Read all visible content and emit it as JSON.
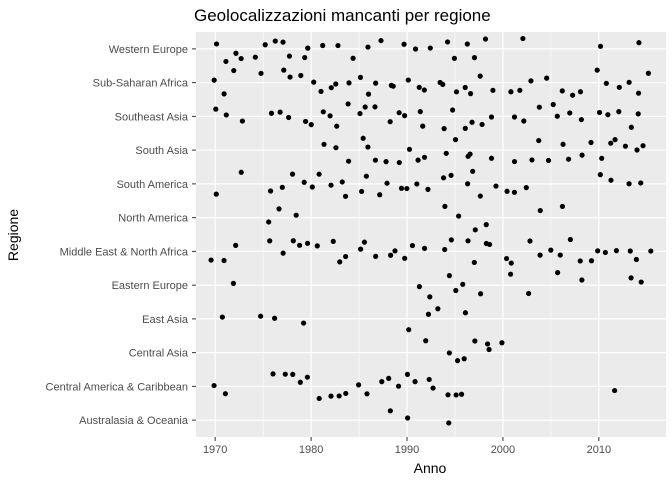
{
  "chart_data": {
    "type": "scatter",
    "title": "Geolocalizzazioni mancanti per regione",
    "xlabel": "Anno",
    "ylabel": "Regione",
    "xlim": [
      1968,
      2017
    ],
    "xticks": [
      1970,
      1980,
      1990,
      2000,
      2010
    ],
    "categories": [
      "Australasia & Oceania",
      "Central America & Caribbean",
      "Central Asia",
      "East Asia",
      "Eastern Europe",
      "Middle East & North Africa",
      "North America",
      "South America",
      "South Asia",
      "Southeast Asia",
      "Sub-Saharan Africa",
      "Western Europe"
    ],
    "grid": true,
    "legend": "none",
    "jitter": true,
    "point_color": "#000000",
    "panel_color": "#ebebeb",
    "grid_color": "#ffffff",
    "points": [
      [
        "Western Europe",
        1970
      ],
      [
        "Western Europe",
        1971
      ],
      [
        "Western Europe",
        1972
      ],
      [
        "Western Europe",
        1973
      ],
      [
        "Western Europe",
        1974
      ],
      [
        "Western Europe",
        1975
      ],
      [
        "Western Europe",
        1976
      ],
      [
        "Western Europe",
        1977
      ],
      [
        "Western Europe",
        1978
      ],
      [
        "Western Europe",
        1979
      ],
      [
        "Western Europe",
        1980
      ],
      [
        "Western Europe",
        1981
      ],
      [
        "Western Europe",
        1983
      ],
      [
        "Western Europe",
        1984
      ],
      [
        "Western Europe",
        1986
      ],
      [
        "Western Europe",
        1987
      ],
      [
        "Western Europe",
        1990
      ],
      [
        "Western Europe",
        1991
      ],
      [
        "Western Europe",
        1992
      ],
      [
        "Western Europe",
        1994
      ],
      [
        "Western Europe",
        1995
      ],
      [
        "Western Europe",
        1996
      ],
      [
        "Western Europe",
        1997
      ],
      [
        "Western Europe",
        1998
      ],
      [
        "Western Europe",
        2002
      ],
      [
        "Western Europe",
        2010
      ],
      [
        "Western Europe",
        2014
      ],
      [
        "Sub-Saharan Africa",
        1970
      ],
      [
        "Sub-Saharan Africa",
        1971
      ],
      [
        "Sub-Saharan Africa",
        1972
      ],
      [
        "Sub-Saharan Africa",
        1975
      ],
      [
        "Sub-Saharan Africa",
        1977
      ],
      [
        "Sub-Saharan Africa",
        1978
      ],
      [
        "Sub-Saharan Africa",
        1979
      ],
      [
        "Sub-Saharan Africa",
        1980
      ],
      [
        "Sub-Saharan Africa",
        1981
      ],
      [
        "Sub-Saharan Africa",
        1982
      ],
      [
        "Sub-Saharan Africa",
        1983
      ],
      [
        "Sub-Saharan Africa",
        1984
      ],
      [
        "Sub-Saharan Africa",
        1985
      ],
      [
        "Sub-Saharan Africa",
        1986
      ],
      [
        "Sub-Saharan Africa",
        1987
      ],
      [
        "Sub-Saharan Africa",
        1988
      ],
      [
        "Sub-Saharan Africa",
        1989
      ],
      [
        "Sub-Saharan Africa",
        1990
      ],
      [
        "Sub-Saharan Africa",
        1991
      ],
      [
        "Sub-Saharan Africa",
        1992
      ],
      [
        "Sub-Saharan Africa",
        1993
      ],
      [
        "Sub-Saharan Africa",
        1994
      ],
      [
        "Sub-Saharan Africa",
        1995
      ],
      [
        "Sub-Saharan Africa",
        1996
      ],
      [
        "Sub-Saharan Africa",
        1997
      ],
      [
        "Sub-Saharan Africa",
        1998
      ],
      [
        "Sub-Saharan Africa",
        1999
      ],
      [
        "Sub-Saharan Africa",
        2001
      ],
      [
        "Sub-Saharan Africa",
        2002
      ],
      [
        "Sub-Saharan Africa",
        2003
      ],
      [
        "Sub-Saharan Africa",
        2005
      ],
      [
        "Sub-Saharan Africa",
        2006
      ],
      [
        "Sub-Saharan Africa",
        2007
      ],
      [
        "Sub-Saharan Africa",
        2008
      ],
      [
        "Sub-Saharan Africa",
        2010
      ],
      [
        "Sub-Saharan Africa",
        2011
      ],
      [
        "Sub-Saharan Africa",
        2012
      ],
      [
        "Sub-Saharan Africa",
        2013
      ],
      [
        "Sub-Saharan Africa",
        2014
      ],
      [
        "Sub-Saharan Africa",
        2015
      ],
      [
        "Southeast Asia",
        1970
      ],
      [
        "Southeast Asia",
        1971
      ],
      [
        "Southeast Asia",
        1973
      ],
      [
        "Southeast Asia",
        1976
      ],
      [
        "Southeast Asia",
        1977
      ],
      [
        "Southeast Asia",
        1978
      ],
      [
        "Southeast Asia",
        1979
      ],
      [
        "Southeast Asia",
        1980
      ],
      [
        "Southeast Asia",
        1981
      ],
      [
        "Southeast Asia",
        1982
      ],
      [
        "Southeast Asia",
        1983
      ],
      [
        "Southeast Asia",
        1984
      ],
      [
        "Southeast Asia",
        1985
      ],
      [
        "Southeast Asia",
        1986
      ],
      [
        "Southeast Asia",
        1987
      ],
      [
        "Southeast Asia",
        1988
      ],
      [
        "Southeast Asia",
        1989
      ],
      [
        "Southeast Asia",
        1990
      ],
      [
        "Southeast Asia",
        1991
      ],
      [
        "Southeast Asia",
        1992
      ],
      [
        "Southeast Asia",
        1994
      ],
      [
        "Southeast Asia",
        1995
      ],
      [
        "Southeast Asia",
        1996
      ],
      [
        "Southeast Asia",
        1997
      ],
      [
        "Southeast Asia",
        1998
      ],
      [
        "Southeast Asia",
        1999
      ],
      [
        "Southeast Asia",
        2001
      ],
      [
        "Southeast Asia",
        2002
      ],
      [
        "Southeast Asia",
        2004
      ],
      [
        "Southeast Asia",
        2005
      ],
      [
        "Southeast Asia",
        2006
      ],
      [
        "Southeast Asia",
        2007
      ],
      [
        "Southeast Asia",
        2008
      ],
      [
        "Southeast Asia",
        2010
      ],
      [
        "Southeast Asia",
        2011
      ],
      [
        "Southeast Asia",
        2012
      ],
      [
        "Southeast Asia",
        2013
      ],
      [
        "Southeast Asia",
        2014
      ],
      [
        "South Asia",
        1981
      ],
      [
        "South Asia",
        1983
      ],
      [
        "South Asia",
        1984
      ],
      [
        "South Asia",
        1985
      ],
      [
        "South Asia",
        1986
      ],
      [
        "South Asia",
        1987
      ],
      [
        "South Asia",
        1988
      ],
      [
        "South Asia",
        1989
      ],
      [
        "South Asia",
        1990
      ],
      [
        "South Asia",
        1991
      ],
      [
        "South Asia",
        1992
      ],
      [
        "South Asia",
        1994
      ],
      [
        "South Asia",
        1995
      ],
      [
        "South Asia",
        1996
      ],
      [
        "South Asia",
        1997
      ],
      [
        "South Asia",
        1999
      ],
      [
        "South Asia",
        2001
      ],
      [
        "South Asia",
        2003
      ],
      [
        "South Asia",
        2004
      ],
      [
        "South Asia",
        2005
      ],
      [
        "South Asia",
        2006
      ],
      [
        "South Asia",
        2007
      ],
      [
        "South Asia",
        2008
      ],
      [
        "South Asia",
        2009
      ],
      [
        "South Asia",
        2010
      ],
      [
        "South Asia",
        2011
      ],
      [
        "South Asia",
        2012
      ],
      [
        "South Asia",
        2013
      ],
      [
        "South Asia",
        2014
      ],
      [
        "South Asia",
        2015
      ],
      [
        "South America",
        1970
      ],
      [
        "South America",
        1973
      ],
      [
        "South America",
        1976
      ],
      [
        "South America",
        1977
      ],
      [
        "South America",
        1978
      ],
      [
        "South America",
        1979
      ],
      [
        "South America",
        1980
      ],
      [
        "South America",
        1981
      ],
      [
        "South America",
        1982
      ],
      [
        "South America",
        1983
      ],
      [
        "South America",
        1984
      ],
      [
        "South America",
        1985
      ],
      [
        "South America",
        1986
      ],
      [
        "South America",
        1987
      ],
      [
        "South America",
        1988
      ],
      [
        "South America",
        1989
      ],
      [
        "South America",
        1990
      ],
      [
        "South America",
        1991
      ],
      [
        "South America",
        1992
      ],
      [
        "South America",
        1994
      ],
      [
        "South America",
        1995
      ],
      [
        "South America",
        1996
      ],
      [
        "South America",
        1997
      ],
      [
        "South America",
        1998
      ],
      [
        "South America",
        1999
      ],
      [
        "South America",
        2000
      ],
      [
        "South America",
        2001
      ],
      [
        "South America",
        2002
      ],
      [
        "South America",
        2010
      ],
      [
        "South America",
        2011
      ],
      [
        "South America",
        2013
      ],
      [
        "South America",
        2014
      ],
      [
        "North America",
        1976
      ],
      [
        "North America",
        1977
      ],
      [
        "North America",
        1978
      ],
      [
        "North America",
        1994
      ],
      [
        "North America",
        1995
      ],
      [
        "North America",
        1997
      ],
      [
        "North America",
        1998
      ],
      [
        "North America",
        2004
      ],
      [
        "North America",
        2006
      ],
      [
        "Middle East & North Africa",
        1970
      ],
      [
        "Middle East & North Africa",
        1971
      ],
      [
        "Middle East & North Africa",
        1972
      ],
      [
        "Middle East & North Africa",
        1976
      ],
      [
        "Middle East & North Africa",
        1977
      ],
      [
        "Middle East & North Africa",
        1978
      ],
      [
        "Middle East & North Africa",
        1979
      ],
      [
        "Middle East & North Africa",
        1980
      ],
      [
        "Middle East & North Africa",
        1981
      ],
      [
        "Middle East & North Africa",
        1982
      ],
      [
        "Middle East & North Africa",
        1983
      ],
      [
        "Middle East & North Africa",
        1984
      ],
      [
        "Middle East & North Africa",
        1985
      ],
      [
        "Middle East & North Africa",
        1986
      ],
      [
        "Middle East & North Africa",
        1987
      ],
      [
        "Middle East & North Africa",
        1988
      ],
      [
        "Middle East & North Africa",
        1989
      ],
      [
        "Middle East & North Africa",
        1990
      ],
      [
        "Middle East & North Africa",
        1991
      ],
      [
        "Middle East & North Africa",
        1992
      ],
      [
        "Middle East & North Africa",
        1994
      ],
      [
        "Middle East & North Africa",
        1995
      ],
      [
        "Middle East & North Africa",
        1996
      ],
      [
        "Middle East & North Africa",
        1997
      ],
      [
        "Middle East & North Africa",
        1998
      ],
      [
        "Middle East & North Africa",
        1999
      ],
      [
        "Middle East & North Africa",
        2000
      ],
      [
        "Middle East & North Africa",
        2001
      ],
      [
        "Middle East & North Africa",
        2003
      ],
      [
        "Middle East & North Africa",
        2004
      ],
      [
        "Middle East & North Africa",
        2005
      ],
      [
        "Middle East & North Africa",
        2006
      ],
      [
        "Middle East & North Africa",
        2007
      ],
      [
        "Middle East & North Africa",
        2008
      ],
      [
        "Middle East & North Africa",
        2009
      ],
      [
        "Middle East & North Africa",
        2010
      ],
      [
        "Middle East & North Africa",
        2011
      ],
      [
        "Middle East & North Africa",
        2012
      ],
      [
        "Middle East & North Africa",
        2013
      ],
      [
        "Middle East & North Africa",
        2014
      ],
      [
        "Middle East & North Africa",
        2015
      ],
      [
        "Eastern Europe",
        1972
      ],
      [
        "Eastern Europe",
        1991
      ],
      [
        "Eastern Europe",
        1992
      ],
      [
        "Eastern Europe",
        1994
      ],
      [
        "Eastern Europe",
        1995
      ],
      [
        "Eastern Europe",
        1996
      ],
      [
        "Eastern Europe",
        1998
      ],
      [
        "Eastern Europe",
        2001
      ],
      [
        "Eastern Europe",
        2003
      ],
      [
        "Eastern Europe",
        2006
      ],
      [
        "Eastern Europe",
        2008
      ],
      [
        "Eastern Europe",
        2013
      ],
      [
        "Eastern Europe",
        2014
      ],
      [
        "East Asia",
        1971
      ],
      [
        "East Asia",
        1975
      ],
      [
        "East Asia",
        1976
      ],
      [
        "East Asia",
        1979
      ],
      [
        "East Asia",
        1990
      ],
      [
        "East Asia",
        1992
      ],
      [
        "East Asia",
        1993
      ],
      [
        "East Asia",
        1996
      ],
      [
        "Central Asia",
        1992
      ],
      [
        "Central Asia",
        1994
      ],
      [
        "Central Asia",
        1995
      ],
      [
        "Central Asia",
        1996
      ],
      [
        "Central Asia",
        1997
      ],
      [
        "Central Asia",
        1998
      ],
      [
        "Central Asia",
        1999
      ],
      [
        "Central Asia",
        2000
      ],
      [
        "Central America & Caribbean",
        1970
      ],
      [
        "Central America & Caribbean",
        1971
      ],
      [
        "Central America & Caribbean",
        1976
      ],
      [
        "Central America & Caribbean",
        1977
      ],
      [
        "Central America & Caribbean",
        1978
      ],
      [
        "Central America & Caribbean",
        1979
      ],
      [
        "Central America & Caribbean",
        1980
      ],
      [
        "Central America & Caribbean",
        1981
      ],
      [
        "Central America & Caribbean",
        1982
      ],
      [
        "Central America & Caribbean",
        1983
      ],
      [
        "Central America & Caribbean",
        1984
      ],
      [
        "Central America & Caribbean",
        1985
      ],
      [
        "Central America & Caribbean",
        1986
      ],
      [
        "Central America & Caribbean",
        1987
      ],
      [
        "Central America & Caribbean",
        1988
      ],
      [
        "Central America & Caribbean",
        1989
      ],
      [
        "Central America & Caribbean",
        1990
      ],
      [
        "Central America & Caribbean",
        1991
      ],
      [
        "Central America & Caribbean",
        1992
      ],
      [
        "Central America & Caribbean",
        1993
      ],
      [
        "Central America & Caribbean",
        1994
      ],
      [
        "Central America & Caribbean",
        1995
      ],
      [
        "Central America & Caribbean",
        1996
      ],
      [
        "Central America & Caribbean",
        2012
      ],
      [
        "Australasia & Oceania",
        1988
      ],
      [
        "Australasia & Oceania",
        1990
      ],
      [
        "Australasia & Oceania",
        1994
      ]
    ]
  }
}
